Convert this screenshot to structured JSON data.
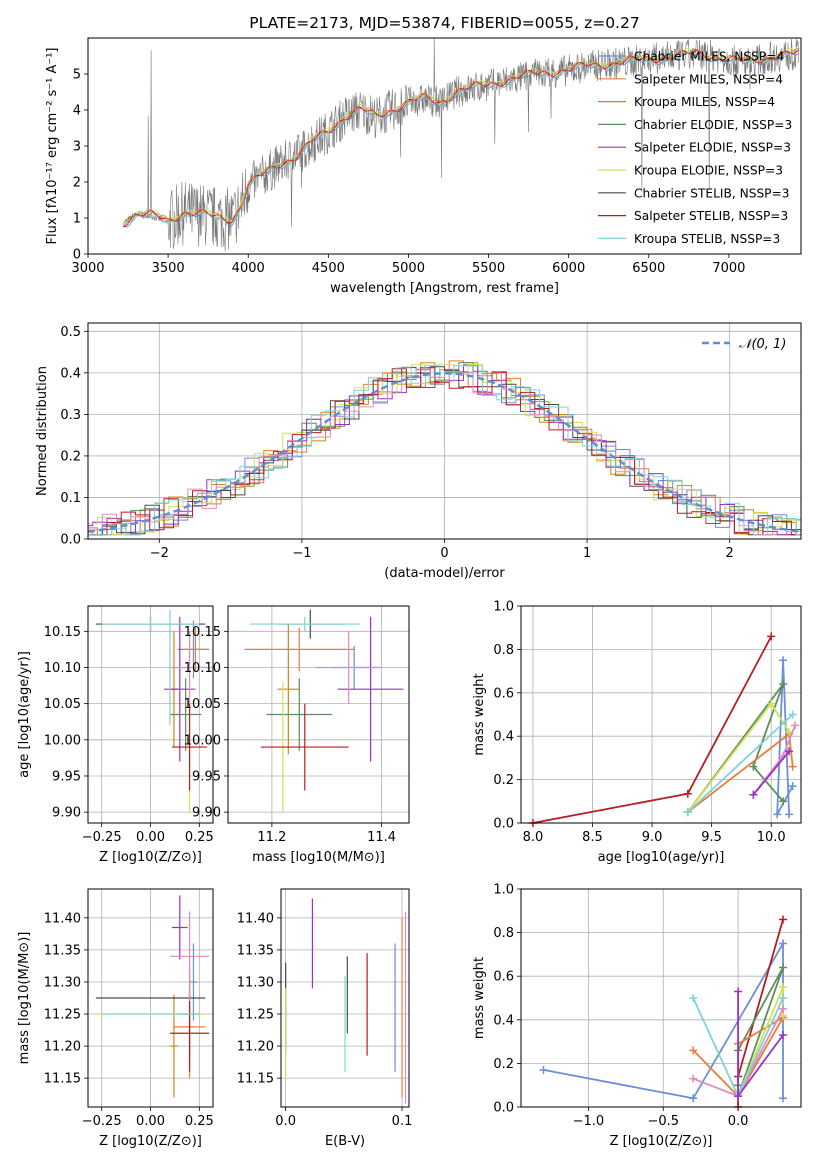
{
  "colors": {
    "chabrier_miles": "#6a8fd8",
    "salpeter_miles": "#e57f3c",
    "kroupa_miles": "#c7871a",
    "chabrier_elodie": "#5a8f5a",
    "salpeter_elodie": "#9b30c8",
    "kroupa_elodie": "#d4e157",
    "chabrier_stelib": "#4a4a4a",
    "salpeter_stelib": "#b81c22",
    "kroupa_stelib": "#7fd3d8",
    "pink": "#e08ac0",
    "normal_curve": "#5b8fd6"
  },
  "chart_data": [
    {
      "id": "spectrum",
      "type": "line",
      "title": "PLATE=2173, MJD=53874, FIBERID=0055, z=0.27",
      "xlabel": "wavelength [Angstrom, rest frame]",
      "ylabel": "Flux [fλ10⁻¹⁷ erg cm⁻² s⁻¹ A⁻¹]",
      "xlim": [
        3000,
        7450
      ],
      "ylim": [
        0,
        6
      ],
      "xticks": [
        "3000",
        "3500",
        "4000",
        "4500",
        "5000",
        "5500",
        "6000",
        "6500",
        "7000"
      ],
      "yticks": [
        "0",
        "1",
        "2",
        "3",
        "4",
        "5"
      ],
      "legend_position": "top-right",
      "legend": [
        {
          "label": "Chabrier MILES, NSSP=4",
          "color": "chabrier_miles"
        },
        {
          "label": "Salpeter MILES, NSSP=4",
          "color": "salpeter_miles"
        },
        {
          "label": "Kroupa MILES, NSSP=4",
          "color": "kroupa_miles"
        },
        {
          "label": "Chabrier ELODIE, NSSP=3",
          "color": "chabrier_elodie"
        },
        {
          "label": "Salpeter ELODIE, NSSP=3",
          "color": "salpeter_elodie"
        },
        {
          "label": "Kroupa ELODIE, NSSP=3",
          "color": "kroupa_elodie"
        },
        {
          "label": "Chabrier STELIB, NSSP=3",
          "color": "chabrier_stelib"
        },
        {
          "label": "Salpeter STELIB, NSSP=3",
          "color": "salpeter_stelib"
        },
        {
          "label": "Kroupa STELIB, NSSP=3",
          "color": "kroupa_stelib"
        }
      ],
      "continuum": [
        [
          3220,
          0.85
        ],
        [
          3300,
          1.1
        ],
        [
          3400,
          1.05
        ],
        [
          3500,
          0.9
        ],
        [
          3600,
          1.15
        ],
        [
          3700,
          1.1
        ],
        [
          3800,
          1.0
        ],
        [
          3900,
          0.95
        ],
        [
          3950,
          1.3
        ],
        [
          4000,
          1.9
        ],
        [
          4100,
          2.2
        ],
        [
          4200,
          2.5
        ],
        [
          4300,
          2.7
        ],
        [
          4400,
          3.1
        ],
        [
          4500,
          3.4
        ],
        [
          4600,
          3.8
        ],
        [
          4700,
          4.0
        ],
        [
          4800,
          3.8
        ],
        [
          4900,
          4.0
        ],
        [
          5000,
          4.2
        ],
        [
          5100,
          4.3
        ],
        [
          5200,
          4.2
        ],
        [
          5300,
          4.5
        ],
        [
          5400,
          4.6
        ],
        [
          5500,
          4.7
        ],
        [
          5600,
          4.8
        ],
        [
          5700,
          4.9
        ],
        [
          5800,
          5.0
        ],
        [
          5900,
          5.05
        ],
        [
          6000,
          5.1
        ],
        [
          6100,
          5.2
        ],
        [
          6200,
          5.25
        ],
        [
          6300,
          5.3
        ],
        [
          6400,
          5.35
        ],
        [
          6500,
          5.4
        ],
        [
          6600,
          5.45
        ],
        [
          6700,
          5.5
        ],
        [
          6800,
          5.55
        ],
        [
          6900,
          5.5
        ],
        [
          7000,
          5.4
        ],
        [
          7100,
          5.3
        ],
        [
          7200,
          5.4
        ],
        [
          7300,
          5.5
        ],
        [
          7450,
          5.55
        ]
      ]
    },
    {
      "id": "residuals",
      "type": "line",
      "xlabel": "(data-model)/error",
      "ylabel": "Normed distribution",
      "xlim": [
        -2.5,
        2.5
      ],
      "ylim": [
        0,
        0.52
      ],
      "xticks": [
        "−2",
        "−1",
        "0",
        "1",
        "2"
      ],
      "yticks": [
        "0.0",
        "0.1",
        "0.2",
        "0.3",
        "0.4",
        "0.5"
      ],
      "legend_position": "top-right",
      "legend": [
        {
          "label": "𝒩(0, 1)",
          "color": "normal_curve"
        }
      ],
      "grid": true
    },
    {
      "id": "age_vs_z",
      "type": "scatter",
      "xlabel": "Z [log10(Z/Z⊙)]",
      "ylabel": "age  [log10(age/yr)]",
      "xlim": [
        -0.32,
        0.32
      ],
      "ylim": [
        9.885,
        10.185
      ],
      "xticks": [
        "−0.25",
        "0.00",
        "0.25"
      ],
      "yticks": [
        "9.90",
        "9.95",
        "10.00",
        "10.05",
        "10.10",
        "10.15"
      ],
      "points": [
        {
          "x": 0.22,
          "y": 10.125,
          "xerr": 0.08,
          "yerr": 0.04,
          "color": "chabrier_miles"
        },
        {
          "x": 0.23,
          "y": 10.125,
          "xerr": 0.06,
          "yerr": 0.03,
          "color": "salpeter_miles"
        },
        {
          "x": 0.12,
          "y": 10.07,
          "xerr": 0.02,
          "yerr": 0.08,
          "color": "kroupa_miles"
        },
        {
          "x": 0.18,
          "y": 10.035,
          "xerr": 0.08,
          "yerr": 0.05,
          "color": "chabrier_elodie"
        },
        {
          "x": 0.15,
          "y": 10.07,
          "xerr": 0.08,
          "yerr": 0.1,
          "color": "salpeter_elodie"
        },
        {
          "x": 0.2,
          "y": 9.99,
          "xerr": 0.02,
          "yerr": 0.09,
          "color": "kroupa_elodie"
        },
        {
          "x": 0.0,
          "y": 10.16,
          "xerr": 0.28,
          "yerr": 0.01,
          "color": "chabrier_stelib"
        },
        {
          "x": 0.2,
          "y": 9.99,
          "xerr": 0.09,
          "yerr": 0.06,
          "color": "salpeter_stelib"
        },
        {
          "x": 0.0,
          "y": 10.16,
          "xerr": 0.25,
          "yerr": 0.01,
          "color": "kroupa_stelib"
        },
        {
          "x": 0.2,
          "y": 10.1,
          "xerr": 0.1,
          "yerr": 0.05,
          "color": "pink"
        },
        {
          "x": 0.1,
          "y": 10.1,
          "xerr": 0.0,
          "yerr": 0.08,
          "color": "kroupa_stelib"
        }
      ]
    },
    {
      "id": "age_vs_mass",
      "type": "scatter",
      "xlabel": "mass [log10(M/M⊙)]",
      "ylabel": "",
      "xlim": [
        11.12,
        11.45
      ],
      "ylim": [
        9.885,
        10.185
      ],
      "xticks": [
        "11.2",
        "11.4"
      ],
      "yticks": [
        "9.90",
        "9.95",
        "10.00",
        "10.05",
        "10.10",
        "10.15"
      ],
      "points": [
        {
          "x": 11.35,
          "y": 10.1,
          "xerr": 0.04,
          "yerr": 0.03,
          "color": "chabrier_miles"
        },
        {
          "x": 11.25,
          "y": 10.125,
          "xerr": 0.1,
          "yerr": 0.03,
          "color": "salpeter_miles"
        },
        {
          "x": 11.23,
          "y": 10.07,
          "xerr": 0.02,
          "yerr": 0.09,
          "color": "kroupa_miles"
        },
        {
          "x": 11.25,
          "y": 10.035,
          "xerr": 0.06,
          "yerr": 0.05,
          "color": "chabrier_elodie"
        },
        {
          "x": 11.38,
          "y": 10.07,
          "xerr": 0.06,
          "yerr": 0.1,
          "color": "salpeter_elodie"
        },
        {
          "x": 11.22,
          "y": 9.99,
          "xerr": 0.02,
          "yerr": 0.09,
          "color": "kroupa_elodie"
        },
        {
          "x": 11.27,
          "y": 10.16,
          "xerr": 0.06,
          "yerr": 0.02,
          "color": "chabrier_stelib"
        },
        {
          "x": 11.26,
          "y": 9.99,
          "xerr": 0.08,
          "yerr": 0.06,
          "color": "salpeter_stelib"
        },
        {
          "x": 11.26,
          "y": 10.16,
          "xerr": 0.1,
          "yerr": 0.01,
          "color": "kroupa_stelib"
        },
        {
          "x": 11.34,
          "y": 10.1,
          "xerr": 0.06,
          "yerr": 0.05,
          "color": "pink"
        }
      ]
    },
    {
      "id": "mass_weight_vs_age",
      "type": "line",
      "xlabel": "age  [log10(age/yr)]",
      "ylabel": "mass weight",
      "xlim": [
        7.9,
        10.25
      ],
      "ylim": [
        0,
        1
      ],
      "xticks": [
        "8.0",
        "8.5",
        "9.0",
        "9.5",
        "10.0"
      ],
      "yticks": [
        "0.0",
        "0.2",
        "0.4",
        "0.6",
        "0.8",
        "1.0"
      ],
      "grid": true,
      "series": [
        {
          "color": "salpeter_stelib",
          "points": [
            [
              8.0,
              0.0
            ],
            [
              9.3,
              0.135
            ],
            [
              10.0,
              0.86
            ]
          ]
        },
        {
          "color": "chabrier_miles",
          "points": [
            [
              10.15,
              0.04
            ],
            [
              10.1,
              0.75
            ],
            [
              10.05,
              0.04
            ],
            [
              10.18,
              0.17
            ]
          ]
        },
        {
          "color": "chabrier_elodie",
          "points": [
            [
              9.3,
              0.05
            ],
            [
              10.1,
              0.64
            ],
            [
              9.85,
              0.26
            ],
            [
              10.1,
              0.1
            ]
          ]
        },
        {
          "color": "salpeter_miles",
          "points": [
            [
              9.3,
              0.05
            ],
            [
              10.15,
              0.41
            ],
            [
              10.18,
              0.26
            ]
          ]
        },
        {
          "color": "kroupa_elodie",
          "points": [
            [
              9.3,
              0.05
            ],
            [
              10.0,
              0.55
            ],
            [
              10.15,
              0.42
            ]
          ]
        },
        {
          "color": "pink",
          "points": [
            [
              9.85,
              0.13
            ],
            [
              10.1,
              0.31
            ],
            [
              10.2,
              0.45
            ]
          ]
        },
        {
          "color": "kroupa_stelib",
          "points": [
            [
              9.3,
              0.05
            ],
            [
              10.18,
              0.5
            ]
          ]
        },
        {
          "color": "salpeter_elodie",
          "points": [
            [
              9.85,
              0.13
            ],
            [
              10.15,
              0.33
            ]
          ]
        }
      ]
    },
    {
      "id": "mass_vs_z",
      "type": "scatter",
      "xlabel": "Z [log10(Z/Z⊙)]",
      "ylabel": "mass [log10(M/M⊙)]",
      "xlim": [
        -0.32,
        0.32
      ],
      "ylim": [
        11.105,
        11.445
      ],
      "xticks": [
        "−0.25",
        "0.00",
        "0.25"
      ],
      "yticks": [
        "11.15",
        "11.20",
        "11.25",
        "11.30",
        "11.35",
        "11.40"
      ],
      "points": [
        {
          "x": 0.22,
          "y": 11.3,
          "xerr": 0.02,
          "yerr": 0.06,
          "color": "chabrier_miles"
        },
        {
          "x": 0.2,
          "y": 11.23,
          "xerr": 0.08,
          "yerr": 0.08,
          "color": "salpeter_miles"
        },
        {
          "x": 0.12,
          "y": 11.2,
          "xerr": 0.02,
          "yerr": 0.08,
          "color": "kroupa_miles"
        },
        {
          "x": 0.2,
          "y": 11.25,
          "xerr": 0.06,
          "yerr": 0.07,
          "color": "chabrier_elodie"
        },
        {
          "x": 0.15,
          "y": 11.385,
          "xerr": 0.04,
          "yerr": 0.05,
          "color": "salpeter_elodie"
        },
        {
          "x": 0.0,
          "y": 11.25,
          "xerr": 0.28,
          "yerr": 0.0,
          "color": "kroupa_elodie"
        },
        {
          "x": 0.0,
          "y": 11.275,
          "xerr": 0.28,
          "yerr": 0.0,
          "color": "chabrier_stelib"
        },
        {
          "x": 0.2,
          "y": 11.22,
          "xerr": 0.1,
          "yerr": 0.06,
          "color": "salpeter_stelib"
        },
        {
          "x": 0.0,
          "y": 11.25,
          "xerr": 0.25,
          "yerr": 0.0,
          "color": "kroupa_stelib"
        },
        {
          "x": 0.2,
          "y": 11.34,
          "xerr": 0.1,
          "yerr": 0.07,
          "color": "pink"
        }
      ]
    },
    {
      "id": "mass_vs_ebv",
      "type": "scatter",
      "xlabel": "E(B-V)",
      "ylabel": "",
      "xlim": [
        -0.004,
        0.106
      ],
      "ylim": [
        11.105,
        11.445
      ],
      "xticks": [
        "0.0",
        "0.1"
      ],
      "yticks": [
        "11.15",
        "11.20",
        "11.25",
        "11.30",
        "11.35",
        "11.40"
      ],
      "points": [
        {
          "x": 0.0,
          "y": 11.26,
          "yerr": 0.07,
          "color": "chabrier_stelib"
        },
        {
          "x": 0.0,
          "y": 11.22,
          "yerr": 0.07,
          "color": "kroupa_elodie"
        },
        {
          "x": 0.023,
          "y": 11.36,
          "yerr": 0.07,
          "color": "salpeter_elodie"
        },
        {
          "x": 0.051,
          "y": 11.235,
          "yerr": 0.075,
          "color": "kroupa_stelib"
        },
        {
          "x": 0.053,
          "y": 11.28,
          "yerr": 0.06,
          "color": "chabrier_stelib"
        },
        {
          "x": 0.07,
          "y": 11.265,
          "yerr": 0.08,
          "color": "salpeter_stelib"
        },
        {
          "x": 0.094,
          "y": 11.26,
          "yerr": 0.1,
          "color": "chabrier_miles"
        },
        {
          "x": 0.1,
          "y": 11.26,
          "yerr": 0.14,
          "color": "salpeter_miles"
        },
        {
          "x": 0.103,
          "y": 11.26,
          "yerr": 0.15,
          "color": "pink"
        }
      ]
    },
    {
      "id": "mass_weight_vs_z",
      "type": "line",
      "xlabel": "Z [log10(Z/Z⊙)]",
      "ylabel": "mass weight",
      "xlim": [
        -1.45,
        0.42
      ],
      "ylim": [
        0,
        1
      ],
      "xticks": [
        "−1.0",
        "−0.5",
        "0.0"
      ],
      "yticks": [
        "0.0",
        "0.2",
        "0.4",
        "0.6",
        "0.8",
        "1.0"
      ],
      "grid": true,
      "series": [
        {
          "color": "chabrier_miles",
          "points": [
            [
              -1.3,
              0.17
            ],
            [
              -0.3,
              0.04
            ],
            [
              0.3,
              0.75
            ],
            [
              0.3,
              0.04
            ]
          ]
        },
        {
          "color": "salpeter_stelib",
          "points": [
            [
              0.0,
              0.0
            ],
            [
              0.0,
              0.14
            ],
            [
              0.3,
              0.86
            ]
          ]
        },
        {
          "color": "chabrier_elodie",
          "points": [
            [
              0.0,
              0.05
            ],
            [
              0.3,
              0.64
            ],
            [
              0.0,
              0.26
            ],
            [
              0.0,
              0.1
            ]
          ]
        },
        {
          "color": "salpeter_miles",
          "points": [
            [
              -0.3,
              0.26
            ],
            [
              0.0,
              0.05
            ],
            [
              0.3,
              0.41
            ],
            [
              0.0,
              0.29
            ]
          ]
        },
        {
          "color": "kroupa_elodie",
          "points": [
            [
              0.0,
              0.05
            ],
            [
              0.3,
              0.55
            ],
            [
              0.3,
              0.42
            ]
          ]
        },
        {
          "color": "pink",
          "points": [
            [
              -0.3,
              0.13
            ],
            [
              0.0,
              0.05
            ],
            [
              0.3,
              0.45
            ]
          ]
        },
        {
          "color": "kroupa_stelib",
          "points": [
            [
              -0.3,
              0.5
            ],
            [
              0.0,
              0.05
            ],
            [
              0.3,
              0.5
            ]
          ]
        },
        {
          "color": "salpeter_elodie",
          "points": [
            [
              0.0,
              0.53
            ],
            [
              0.0,
              0.05
            ],
            [
              0.3,
              0.33
            ]
          ]
        }
      ]
    }
  ]
}
